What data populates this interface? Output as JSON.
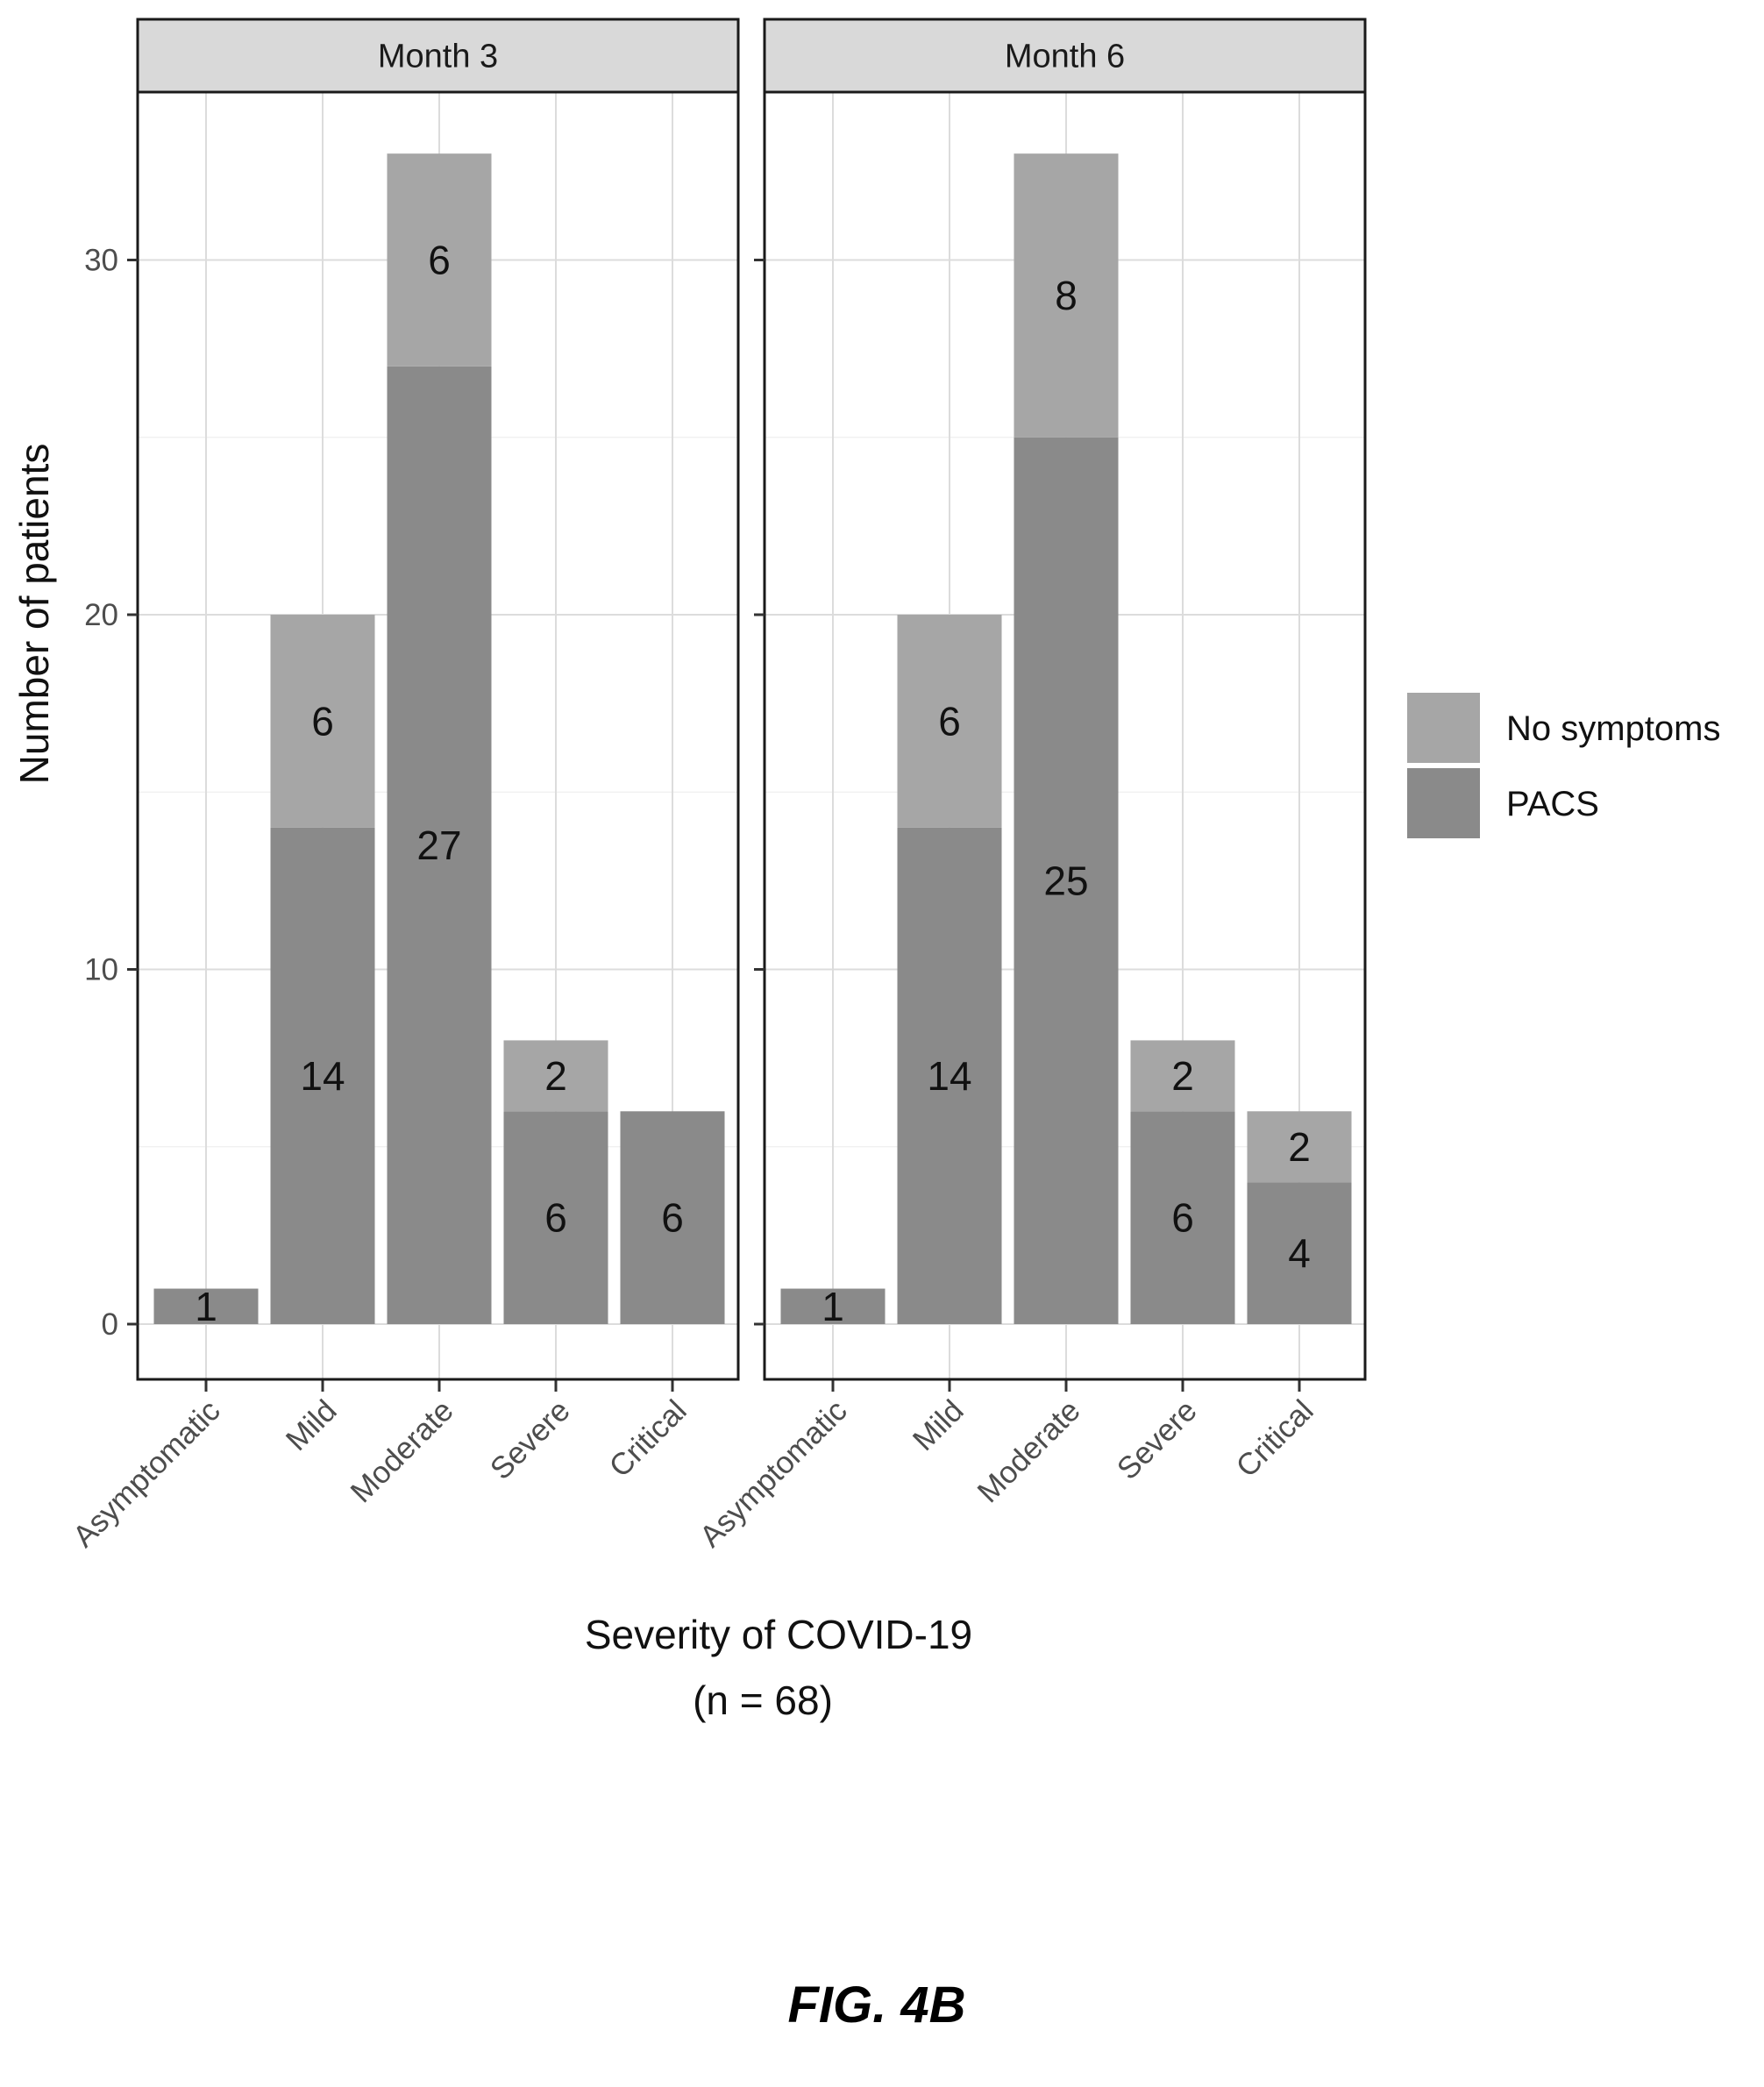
{
  "figure_caption": "FIG. 4B",
  "chart_data": {
    "type": "bar",
    "stacked": true,
    "facets": [
      "Month 3",
      "Month 6"
    ],
    "categories": [
      "Asymptomatic",
      "Mild",
      "Moderate",
      "Severe",
      "Critical"
    ],
    "ylabel": "Number of patients",
    "xlabel": "Severity of COVID-19",
    "xlabel_sub": "(n = 68)",
    "ylim": [
      -2,
      36
    ],
    "yticks": [
      0,
      10,
      20,
      30
    ],
    "grid": true,
    "legend": {
      "placement": "right",
      "entries": [
        {
          "name": "No symptoms",
          "color": "#a6a6a6"
        },
        {
          "name": "PACS",
          "color": "#8a8a8a"
        }
      ]
    },
    "series": [
      {
        "name": "PACS",
        "color": "#8a8a8a",
        "values": {
          "Month 3": [
            1,
            14,
            27,
            6,
            6
          ],
          "Month 6": [
            1,
            14,
            25,
            6,
            4
          ]
        }
      },
      {
        "name": "No symptoms",
        "color": "#a6a6a6",
        "values": {
          "Month 3": [
            0,
            6,
            6,
            2,
            0
          ],
          "Month 6": [
            0,
            6,
            8,
            2,
            2
          ]
        }
      }
    ],
    "bar_labels": {
      "Month 3": {
        "PACS": [
          "1",
          "14",
          "27",
          "6",
          "6"
        ],
        "No symptoms": [
          "",
          "6",
          "6",
          "2",
          ""
        ]
      },
      "Month 6": {
        "PACS": [
          "1",
          "14",
          "25",
          "6",
          "4"
        ],
        "No symptoms": [
          "",
          "6",
          "8",
          "2",
          "2"
        ]
      }
    }
  }
}
